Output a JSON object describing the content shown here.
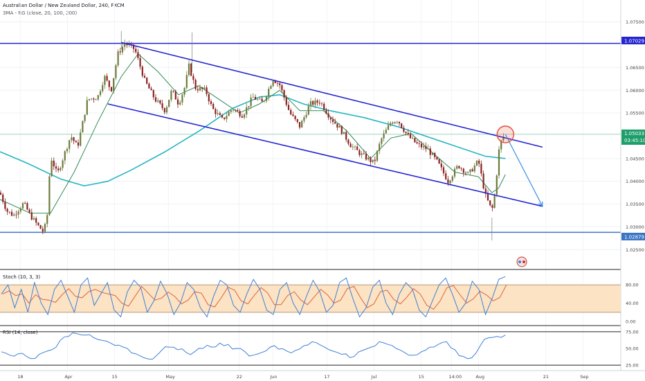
{
  "header": {
    "title": "Australian Dollar / New Zealand Dollar, 240, FXCM",
    "indicator": "3MA - RG (close, 20, 100, 200)"
  },
  "colors": {
    "up_candle": "#6b7a3a",
    "down_candle": "#8a2020",
    "ma_fast": "#2e8b57",
    "ma_slow": "#26b5c2",
    "channel": "#2424d0",
    "hline_top": "#2424d0",
    "hline_bottom": "#3a75c4",
    "projection": "#3a8ee6",
    "circle": "#e74c3c",
    "stoch_k": "#3f7fd6",
    "stoch_d": "#e0623a",
    "stoch_band": "#fbe3c4",
    "rsi": "#3f7fd6",
    "price_badge": "#1e9e6a",
    "level_badge": "#2424d0"
  },
  "price_axis": {
    "ticks": [
      "1.07500",
      "1.07029",
      "1.06500",
      "1.06000",
      "1.05500",
      "1.05033",
      "03:45:10",
      "1.04500",
      "1.04000",
      "1.03500",
      "1.03000",
      "1.02879",
      "1.02500"
    ],
    "current_price": "1.05033",
    "countdown": "03:45:10",
    "top_level": "1.07029",
    "bottom_level": "1.02879"
  },
  "time_axis": {
    "labels": [
      "18",
      "Apr",
      "15",
      "May",
      "22",
      "Jun",
      "17",
      "Jul",
      "15",
      "14:00",
      "Aug",
      "21",
      "Sep"
    ]
  },
  "stoch": {
    "title": "Stoch (10, 3, 3)",
    "ticks": [
      "80.00",
      "40.00",
      "0.00"
    ]
  },
  "rsi": {
    "title": "RSI (14, close)",
    "ticks": [
      "75.00",
      "50.00",
      "25.00"
    ]
  },
  "chart_data": {
    "type": "candlestick",
    "title": "Australian Dollar / New Zealand Dollar, 240, FXCM",
    "y_range": [
      1.0223,
      1.0783
    ],
    "x_range": [
      "Mar 12",
      "Sep 3"
    ],
    "grid": true,
    "price_points": [
      {
        "x": "Mar 12",
        "y": 1.0375
      },
      {
        "x": "Mar 14",
        "y": 1.0335
      },
      {
        "x": "Mar 16",
        "y": 1.0325
      },
      {
        "x": "Mar 19",
        "y": 1.0352
      },
      {
        "x": "Mar 21",
        "y": 1.0325
      },
      {
        "x": "Mar 23",
        "y": 1.0305
      },
      {
        "x": "Mar 25",
        "y": 1.0288
      },
      {
        "x": "Mar 26",
        "y": 1.0325
      },
      {
        "x": "Mar 27",
        "y": 1.0455
      },
      {
        "x": "Mar 29",
        "y": 1.0415
      },
      {
        "x": "Apr 2",
        "y": 1.05
      },
      {
        "x": "Apr 4",
        "y": 1.0475
      },
      {
        "x": "Apr 7",
        "y": 1.058
      },
      {
        "x": "Apr 10",
        "y": 1.0585
      },
      {
        "x": "Apr 12",
        "y": 1.063
      },
      {
        "x": "Apr 14",
        "y": 1.06
      },
      {
        "x": "Apr 16",
        "y": 1.068
      },
      {
        "x": "Apr 18",
        "y": 1.0703
      },
      {
        "x": "Apr 21",
        "y": 1.069
      },
      {
        "x": "Apr 24",
        "y": 1.062
      },
      {
        "x": "Apr 27",
        "y": 1.058
      },
      {
        "x": "Apr 30",
        "y": 1.0555
      },
      {
        "x": "May 2",
        "y": 1.06
      },
      {
        "x": "May 4",
        "y": 1.057
      },
      {
        "x": "May 6",
        "y": 1.061
      },
      {
        "x": "May 7",
        "y": 1.0655
      },
      {
        "x": "May 9",
        "y": 1.0605
      },
      {
        "x": "May 12",
        "y": 1.06
      },
      {
        "x": "May 14",
        "y": 1.056
      },
      {
        "x": "May 17",
        "y": 1.0535
      },
      {
        "x": "May 20",
        "y": 1.056
      },
      {
        "x": "May 23",
        "y": 1.0545
      },
      {
        "x": "May 26",
        "y": 1.0585
      },
      {
        "x": "May 29",
        "y": 1.0572
      },
      {
        "x": "Jun 1",
        "y": 1.0625
      },
      {
        "x": "Jun 3",
        "y": 1.0612
      },
      {
        "x": "Jun 6",
        "y": 1.055
      },
      {
        "x": "Jun 9",
        "y": 1.052
      },
      {
        "x": "Jun 12",
        "y": 1.057
      },
      {
        "x": "Jun 15",
        "y": 1.0575
      },
      {
        "x": "Jun 18",
        "y": 1.054
      },
      {
        "x": "Jun 21",
        "y": 1.0515
      },
      {
        "x": "Jun 24",
        "y": 1.048
      },
      {
        "x": "Jun 27",
        "y": 1.046
      },
      {
        "x": "Jul 1",
        "y": 1.044
      },
      {
        "x": "Jul 3",
        "y": 1.049
      },
      {
        "x": "Jul 6",
        "y": 1.053
      },
      {
        "x": "Jul 8",
        "y": 1.0535
      },
      {
        "x": "Jul 11",
        "y": 1.05
      },
      {
        "x": "Jul 14",
        "y": 1.048
      },
      {
        "x": "Jul 17",
        "y": 1.047
      },
      {
        "x": "Jul 20",
        "y": 1.044
      },
      {
        "x": "Jul 23",
        "y": 1.04
      },
      {
        "x": "Jul 26",
        "y": 1.0435
      },
      {
        "x": "Jul 29",
        "y": 1.0415
      },
      {
        "x": "Aug 1",
        "y": 1.0445
      },
      {
        "x": "Aug 3",
        "y": 1.037
      },
      {
        "x": "Aug 5",
        "y": 1.0335
      },
      {
        "x": "Aug 6",
        "y": 1.038
      },
      {
        "x": "Aug 7",
        "y": 1.0465
      },
      {
        "x": "Aug 8",
        "y": 1.0495
      },
      {
        "x": "Aug 9",
        "y": 1.0503
      }
    ],
    "ma_fast": [
      {
        "x": "Mar 12",
        "y": 1.036
      },
      {
        "x": "Mar 21",
        "y": 1.033
      },
      {
        "x": "Mar 27",
        "y": 1.033
      },
      {
        "x": "Apr 3",
        "y": 1.042
      },
      {
        "x": "Apr 10",
        "y": 1.053
      },
      {
        "x": "Apr 17",
        "y": 1.063
      },
      {
        "x": "Apr 22",
        "y": 1.068
      },
      {
        "x": "Apr 28",
        "y": 1.064
      },
      {
        "x": "May 4",
        "y": 1.059
      },
      {
        "x": "May 10",
        "y": 1.061
      },
      {
        "x": "May 16",
        "y": 1.058
      },
      {
        "x": "May 22",
        "y": 1.055
      },
      {
        "x": "May 28",
        "y": 1.057
      },
      {
        "x": "Jun 3",
        "y": 1.06
      },
      {
        "x": "Jun 9",
        "y": 1.0555
      },
      {
        "x": "Jun 16",
        "y": 1.0555
      },
      {
        "x": "Jun 23",
        "y": 1.051
      },
      {
        "x": "Jun 30",
        "y": 1.045
      },
      {
        "x": "Jul 6",
        "y": 1.0495
      },
      {
        "x": "Jul 12",
        "y": 1.0505
      },
      {
        "x": "Jul 18",
        "y": 1.0465
      },
      {
        "x": "Jul 25",
        "y": 1.042
      },
      {
        "x": "Aug 1",
        "y": 1.041
      },
      {
        "x": "Aug 5",
        "y": 1.0375
      },
      {
        "x": "Aug 7",
        "y": 1.0385
      },
      {
        "x": "Aug 9",
        "y": 1.0415
      }
    ],
    "ma_slow": [
      {
        "x": "Mar 12",
        "y": 1.0465
      },
      {
        "x": "Mar 20",
        "y": 1.044
      },
      {
        "x": "Mar 30",
        "y": 1.0405
      },
      {
        "x": "Apr 6",
        "y": 1.039
      },
      {
        "x": "Apr 13",
        "y": 1.04
      },
      {
        "x": "Apr 20",
        "y": 1.0425
      },
      {
        "x": "Apr 30",
        "y": 1.0465
      },
      {
        "x": "May 10",
        "y": 1.051
      },
      {
        "x": "May 20",
        "y": 1.056
      },
      {
        "x": "May 28",
        "y": 1.0585
      },
      {
        "x": "Jun 3",
        "y": 1.059
      },
      {
        "x": "Jun 10",
        "y": 1.057
      },
      {
        "x": "Jun 18",
        "y": 1.0555
      },
      {
        "x": "Jun 28",
        "y": 1.054
      },
      {
        "x": "Jul 8",
        "y": 1.052
      },
      {
        "x": "Jul 18",
        "y": 1.0495
      },
      {
        "x": "Jul 26",
        "y": 1.0475
      },
      {
        "x": "Aug 3",
        "y": 1.0455
      },
      {
        "x": "Aug 9",
        "y": 1.045
      }
    ],
    "stoch_k": [
      60,
      80,
      30,
      70,
      20,
      85,
      40,
      15,
      70,
      90,
      55,
      20,
      80,
      95,
      35,
      60,
      85,
      25,
      10,
      65,
      90,
      75,
      20,
      45,
      88,
      60,
      15,
      40,
      85,
      70,
      30,
      10,
      55,
      90,
      80,
      35,
      20,
      60,
      92,
      70,
      25,
      15,
      70,
      85,
      40,
      15,
      55,
      90,
      65,
      20,
      35,
      85,
      95,
      50,
      10,
      30,
      75,
      90,
      40,
      15,
      60,
      85,
      70,
      25,
      10,
      45,
      80,
      95,
      60,
      20,
      40,
      88,
      70,
      15,
      50,
      92,
      98
    ],
    "rsi_values": [
      45,
      40,
      42,
      38,
      35,
      44,
      48,
      62,
      68,
      72,
      70,
      66,
      62,
      58,
      55,
      50,
      42,
      36,
      34,
      46,
      52,
      48,
      44,
      45,
      50,
      52,
      58,
      56,
      50,
      45,
      40,
      44,
      52,
      49,
      46,
      47,
      54,
      60,
      55,
      48,
      44,
      42,
      38,
      47,
      52,
      60,
      56,
      50,
      44,
      40,
      45,
      52,
      56,
      60,
      48,
      38,
      36,
      54,
      66,
      68,
      70
    ],
    "annotations": {
      "resistance_level": 1.07029,
      "support_level": 1.02879,
      "channel_upper": [
        {
          "x": "Apr 17",
          "y": 1.0705
        },
        {
          "x": "Aug 20",
          "y": 1.0475
        }
      ],
      "channel_lower": [
        {
          "x": "Apr 13",
          "y": 1.057
        },
        {
          "x": "Aug 20",
          "y": 1.0345
        }
      ],
      "projection_arrow": [
        {
          "x": "Aug 9",
          "y": 1.0503
        },
        {
          "x": "Aug 20",
          "y": 1.0345
        }
      ],
      "circle_at": {
        "x": "Aug 9",
        "y": 1.0503
      }
    }
  }
}
